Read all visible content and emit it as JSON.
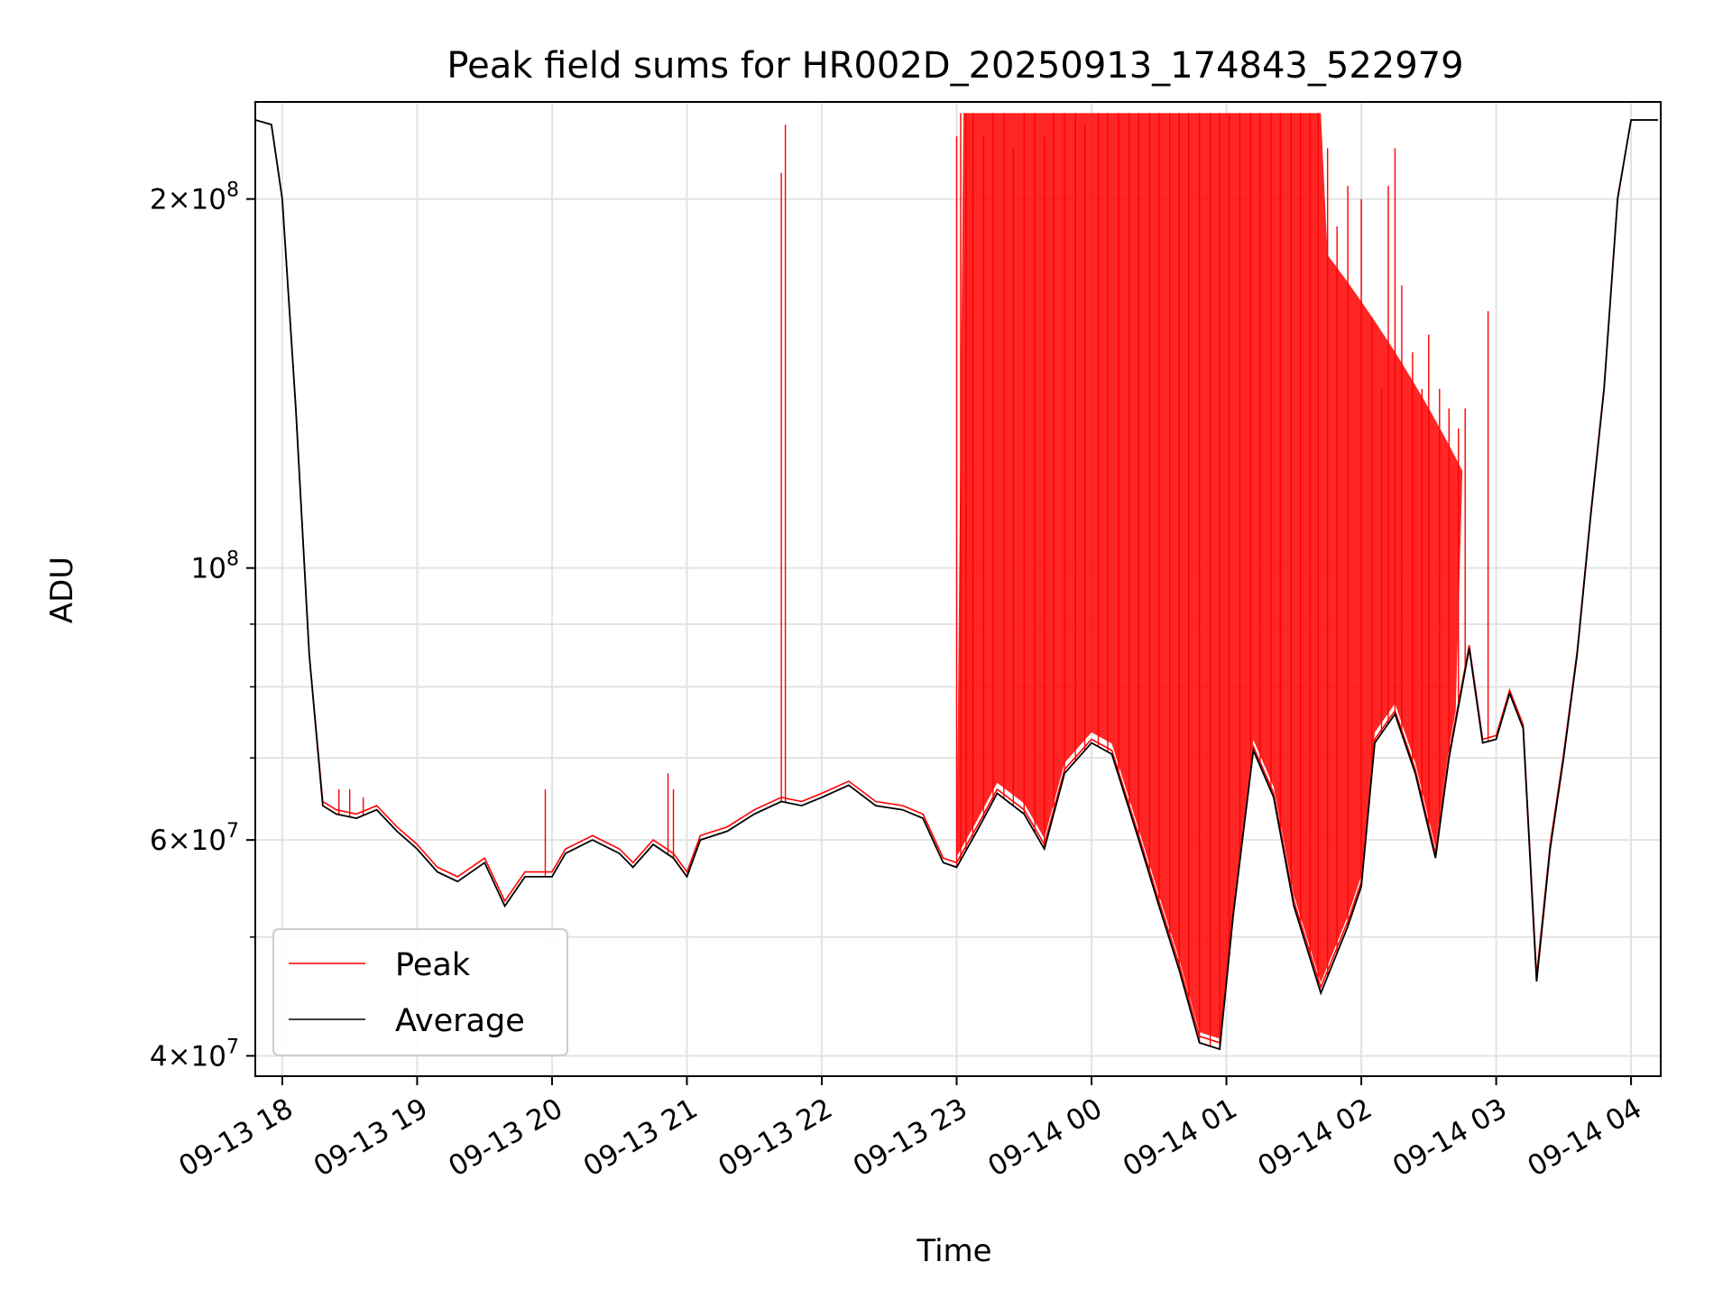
{
  "chart_data": {
    "type": "line",
    "title": "Peak field sums for HR002D_20250913_174843_522979",
    "xlabel": "Time",
    "ylabel": "ADU",
    "yscale": "log",
    "xlim": [
      "2025-09-13 17:48",
      "2025-09-14 04:13"
    ],
    "ylim": [
      38500000,
      240000000
    ],
    "grid": true,
    "legend_position": "lower-left",
    "x_ticks": [
      "09-13 18",
      "09-13 19",
      "09-13 20",
      "09-13 21",
      "09-13 22",
      "09-13 23",
      "09-14 00",
      "09-14 01",
      "09-14 02",
      "09-14 03",
      "09-14 04"
    ],
    "x_tick_hours": [
      18,
      19,
      20,
      21,
      22,
      23,
      24,
      25,
      26,
      27,
      28
    ],
    "y_major_ticks": [
      {
        "value": 40000000,
        "mantissa": "4",
        "exp": "7"
      },
      {
        "value": 60000000,
        "mantissa": "6",
        "exp": "7"
      },
      {
        "value": 100000000,
        "mantissa": "",
        "exp": "8"
      },
      {
        "value": 200000000,
        "mantissa": "2",
        "exp": "8"
      }
    ],
    "y_minor_ticks": [
      50000000,
      70000000,
      80000000,
      90000000
    ],
    "series": [
      {
        "name": "Peak",
        "color": "#ff0000"
      },
      {
        "name": "Average",
        "color": "#000000"
      }
    ],
    "x_hours": [
      17.8,
      17.92,
      18.0,
      18.1,
      18.2,
      18.3,
      18.4,
      18.55,
      18.7,
      18.85,
      19.0,
      19.15,
      19.3,
      19.5,
      19.65,
      19.8,
      20.0,
      20.1,
      20.3,
      20.5,
      20.6,
      20.75,
      20.9,
      21.0,
      21.1,
      21.3,
      21.5,
      21.7,
      21.85,
      22.0,
      22.2,
      22.4,
      22.6,
      22.75,
      22.9,
      23.0,
      23.15,
      23.3,
      23.5,
      23.65,
      23.8,
      24.0,
      24.15,
      24.35,
      24.5,
      24.65,
      24.8,
      24.95,
      25.05,
      25.2,
      25.35,
      25.5,
      25.7,
      25.9,
      26.0,
      26.1,
      26.25,
      26.4,
      26.55,
      26.65,
      26.8,
      26.9,
      27.0,
      27.1,
      27.2,
      27.3,
      27.4,
      27.5,
      27.6,
      27.7,
      27.8,
      27.9,
      28.0,
      28.1,
      28.2
    ],
    "average_values": [
      232000000,
      230000000,
      200000000,
      135000000,
      85000000,
      64000000,
      63000000,
      62500000,
      63500000,
      61000000,
      59000000,
      56500000,
      55500000,
      57500000,
      53000000,
      56000000,
      56000000,
      58500000,
      60000000,
      58500000,
      57000000,
      59500000,
      58000000,
      56000000,
      60000000,
      61000000,
      63000000,
      64500000,
      64000000,
      65000000,
      66500000,
      64000000,
      63500000,
      62500000,
      57500000,
      57000000,
      61000000,
      65500000,
      63000000,
      59000000,
      68000000,
      72000000,
      70500000,
      60000000,
      53000000,
      47000000,
      41000000,
      40500000,
      52000000,
      71000000,
      65000000,
      53000000,
      45000000,
      51000000,
      55000000,
      72000000,
      76000000,
      68000000,
      58000000,
      70000000,
      86000000,
      72000000,
      72500000,
      79000000,
      74000000,
      46000000,
      59000000,
      70000000,
      85000000,
      110000000,
      140000000,
      200000000,
      232000000,
      232000000,
      232000000
    ],
    "peak_values": [
      232000000,
      230000000,
      200000000,
      135000000,
      85000000,
      64500000,
      63500000,
      63000000,
      64000000,
      61500000,
      59500000,
      57000000,
      56000000,
      58000000,
      53500000,
      56500000,
      56500000,
      59000000,
      60500000,
      59000000,
      57500000,
      60000000,
      58500000,
      56500000,
      60500000,
      61500000,
      63500000,
      65000000,
      64500000,
      65500000,
      67000000,
      64500000,
      64000000,
      63000000,
      58000000,
      57500000,
      61500000,
      66000000,
      63500000,
      59500000,
      68500000,
      72500000,
      71000000,
      60500000,
      53500000,
      47500000,
      41500000,
      41000000,
      52500000,
      71500000,
      65500000,
      53500000,
      45500000,
      51500000,
      55500000,
      72500000,
      76500000,
      68500000,
      58500000,
      70500000,
      86500000,
      72500000,
      73000000,
      79500000,
      74500000,
      46500000,
      59500000,
      70500000,
      85500000,
      110500000,
      140500000,
      200500000,
      232000000,
      232000000,
      232000000
    ],
    "peak_spikes": [
      {
        "x": 18.42,
        "y": 66000000
      },
      {
        "x": 18.5,
        "y": 66000000
      },
      {
        "x": 18.6,
        "y": 65000000
      },
      {
        "x": 19.95,
        "y": 66000000
      },
      {
        "x": 20.86,
        "y": 68000000
      },
      {
        "x": 20.9,
        "y": 66000000
      },
      {
        "x": 21.7,
        "y": 210000000
      },
      {
        "x": 21.73,
        "y": 230000000
      },
      {
        "x": 23.0,
        "y": 225000000
      },
      {
        "x": 23.03,
        "y": 235000000
      },
      {
        "x": 23.07,
        "y": 235000000
      },
      {
        "x": 23.12,
        "y": 235000000
      },
      {
        "x": 23.2,
        "y": 225000000
      },
      {
        "x": 23.27,
        "y": 235000000
      },
      {
        "x": 23.35,
        "y": 235000000
      },
      {
        "x": 23.42,
        "y": 220000000
      },
      {
        "x": 23.5,
        "y": 235000000
      },
      {
        "x": 23.58,
        "y": 235000000
      },
      {
        "x": 23.65,
        "y": 225000000
      },
      {
        "x": 23.72,
        "y": 235000000
      },
      {
        "x": 23.8,
        "y": 235000000
      },
      {
        "x": 23.88,
        "y": 235000000
      },
      {
        "x": 23.95,
        "y": 230000000
      },
      {
        "x": 24.05,
        "y": 235000000
      },
      {
        "x": 24.12,
        "y": 235000000
      },
      {
        "x": 24.2,
        "y": 235000000
      },
      {
        "x": 24.28,
        "y": 235000000
      },
      {
        "x": 24.35,
        "y": 235000000
      },
      {
        "x": 24.43,
        "y": 235000000
      },
      {
        "x": 24.5,
        "y": 235000000
      },
      {
        "x": 24.58,
        "y": 235000000
      },
      {
        "x": 24.65,
        "y": 235000000
      },
      {
        "x": 24.72,
        "y": 235000000
      },
      {
        "x": 24.8,
        "y": 235000000
      },
      {
        "x": 24.88,
        "y": 235000000
      },
      {
        "x": 24.95,
        "y": 235000000
      },
      {
        "x": 25.02,
        "y": 235000000
      },
      {
        "x": 25.1,
        "y": 235000000
      },
      {
        "x": 25.18,
        "y": 235000000
      },
      {
        "x": 25.25,
        "y": 235000000
      },
      {
        "x": 25.33,
        "y": 235000000
      },
      {
        "x": 25.4,
        "y": 235000000
      },
      {
        "x": 25.48,
        "y": 235000000
      },
      {
        "x": 25.55,
        "y": 235000000
      },
      {
        "x": 25.62,
        "y": 235000000
      },
      {
        "x": 25.68,
        "y": 235000000
      },
      {
        "x": 25.75,
        "y": 220000000
      },
      {
        "x": 25.82,
        "y": 190000000
      },
      {
        "x": 25.9,
        "y": 205000000
      },
      {
        "x": 26.0,
        "y": 200000000
      },
      {
        "x": 26.08,
        "y": 160000000
      },
      {
        "x": 26.15,
        "y": 140000000
      },
      {
        "x": 26.2,
        "y": 205000000
      },
      {
        "x": 26.25,
        "y": 220000000
      },
      {
        "x": 26.3,
        "y": 170000000
      },
      {
        "x": 26.38,
        "y": 150000000
      },
      {
        "x": 26.45,
        "y": 140000000
      },
      {
        "x": 26.5,
        "y": 155000000
      },
      {
        "x": 26.58,
        "y": 140000000
      },
      {
        "x": 26.65,
        "y": 135000000
      },
      {
        "x": 26.72,
        "y": 130000000
      },
      {
        "x": 26.77,
        "y": 135000000
      },
      {
        "x": 26.94,
        "y": 162000000
      }
    ]
  }
}
